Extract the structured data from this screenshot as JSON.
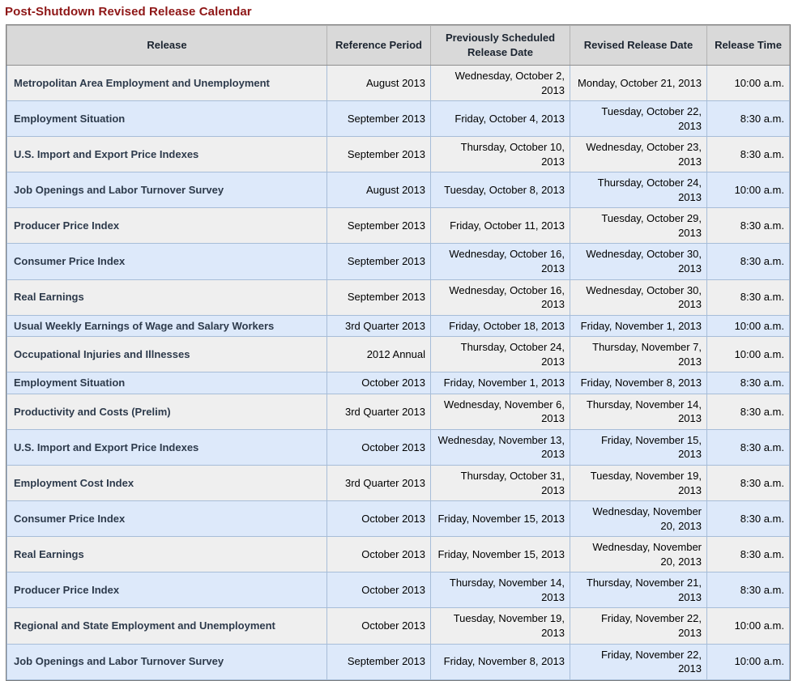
{
  "page": {
    "title": "Post-Shutdown Revised Release Calendar"
  },
  "colors": {
    "title_text": "#8e1616",
    "header_bg": "#d9d9d9",
    "header_text": "#1b2430",
    "row_gray_bg": "#efefef",
    "row_blue_bg": "#dde9fa",
    "release_name_text": "#2d3a4b",
    "cell_border": "#a7bdd8",
    "outer_border": "#7f7f7f"
  },
  "table": {
    "columns": [
      {
        "key": "release",
        "label": "Release"
      },
      {
        "key": "reference_period",
        "label": "Reference Period"
      },
      {
        "key": "previously_scheduled_release_date",
        "label": "Previously Scheduled Release Date"
      },
      {
        "key": "revised_release_date",
        "label": "Revised Release Date"
      },
      {
        "key": "release_time",
        "label": "Release Time"
      }
    ],
    "rows": [
      {
        "release": "Metropolitan Area Employment and Unemployment",
        "reference_period": "August 2013",
        "previously_scheduled_release_date": "Wednesday, October 2, 2013",
        "revised_release_date": "Monday, October 21, 2013",
        "release_time": "10:00 a.m."
      },
      {
        "release": "Employment Situation",
        "reference_period": "September 2013",
        "previously_scheduled_release_date": "Friday, October 4, 2013",
        "revised_release_date": "Tuesday, October 22, 2013",
        "release_time": "8:30 a.m."
      },
      {
        "release": "U.S. Import and Export Price Indexes",
        "reference_period": "September 2013",
        "previously_scheduled_release_date": "Thursday, October 10, 2013",
        "revised_release_date": "Wednesday, October 23, 2013",
        "release_time": "8:30 a.m."
      },
      {
        "release": "Job Openings and Labor Turnover Survey",
        "reference_period": "August 2013",
        "previously_scheduled_release_date": "Tuesday, October 8, 2013",
        "revised_release_date": "Thursday, October 24, 2013",
        "release_time": "10:00 a.m."
      },
      {
        "release": "Producer Price Index",
        "reference_period": "September 2013",
        "previously_scheduled_release_date": "Friday, October 11, 2013",
        "revised_release_date": "Tuesday, October 29, 2013",
        "release_time": "8:30 a.m."
      },
      {
        "release": "Consumer Price Index",
        "reference_period": "September 2013",
        "previously_scheduled_release_date": "Wednesday, October 16, 2013",
        "revised_release_date": "Wednesday, October 30, 2013",
        "release_time": "8:30 a.m."
      },
      {
        "release": "Real Earnings",
        "reference_period": "September 2013",
        "previously_scheduled_release_date": "Wednesday, October 16, 2013",
        "revised_release_date": "Wednesday, October 30, 2013",
        "release_time": "8:30 a.m."
      },
      {
        "release": "Usual Weekly Earnings of Wage and Salary Workers",
        "reference_period": "3rd Quarter 2013",
        "previously_scheduled_release_date": "Friday, October 18, 2013",
        "revised_release_date": "Friday, November 1, 2013",
        "release_time": "10:00 a.m."
      },
      {
        "release": "Occupational Injuries and Illnesses",
        "reference_period": "2012 Annual",
        "previously_scheduled_release_date": "Thursday, October 24, 2013",
        "revised_release_date": "Thursday, November 7, 2013",
        "release_time": "10:00 a.m."
      },
      {
        "release": "Employment Situation",
        "reference_period": "October 2013",
        "previously_scheduled_release_date": "Friday, November 1, 2013",
        "revised_release_date": "Friday, November 8, 2013",
        "release_time": "8:30 a.m."
      },
      {
        "release": "Productivity and Costs (Prelim)",
        "reference_period": "3rd Quarter 2013",
        "previously_scheduled_release_date": "Wednesday, November 6, 2013",
        "revised_release_date": "Thursday, November 14, 2013",
        "release_time": "8:30 a.m."
      },
      {
        "release": "U.S. Import and Export Price Indexes",
        "reference_period": "October 2013",
        "previously_scheduled_release_date": "Wednesday, November 13, 2013",
        "revised_release_date": "Friday, November 15, 2013",
        "release_time": "8:30 a.m."
      },
      {
        "release": "Employment Cost Index",
        "reference_period": "3rd Quarter 2013",
        "previously_scheduled_release_date": "Thursday, October 31, 2013",
        "revised_release_date": "Tuesday, November 19, 2013",
        "release_time": "8:30 a.m."
      },
      {
        "release": "Consumer Price Index",
        "reference_period": "October 2013",
        "previously_scheduled_release_date": "Friday, November 15, 2013",
        "revised_release_date": "Wednesday, November 20, 2013",
        "release_time": "8:30 a.m."
      },
      {
        "release": "Real Earnings",
        "reference_period": "October 2013",
        "previously_scheduled_release_date": "Friday, November 15, 2013",
        "revised_release_date": "Wednesday, November 20, 2013",
        "release_time": "8:30 a.m."
      },
      {
        "release": "Producer Price Index",
        "reference_period": "October 2013",
        "previously_scheduled_release_date": "Thursday, November 14, 2013",
        "revised_release_date": "Thursday, November 21, 2013",
        "release_time": "8:30 a.m."
      },
      {
        "release": "Regional and State Employment and Unemployment",
        "reference_period": "October 2013",
        "previously_scheduled_release_date": "Tuesday, November 19, 2013",
        "revised_release_date": "Friday, November 22, 2013",
        "release_time": "10:00 a.m."
      },
      {
        "release": "Job Openings and Labor Turnover Survey",
        "reference_period": "September 2013",
        "previously_scheduled_release_date": "Friday, November 8, 2013",
        "revised_release_date": "Friday, November 22, 2013",
        "release_time": "10:00 a.m."
      }
    ]
  }
}
